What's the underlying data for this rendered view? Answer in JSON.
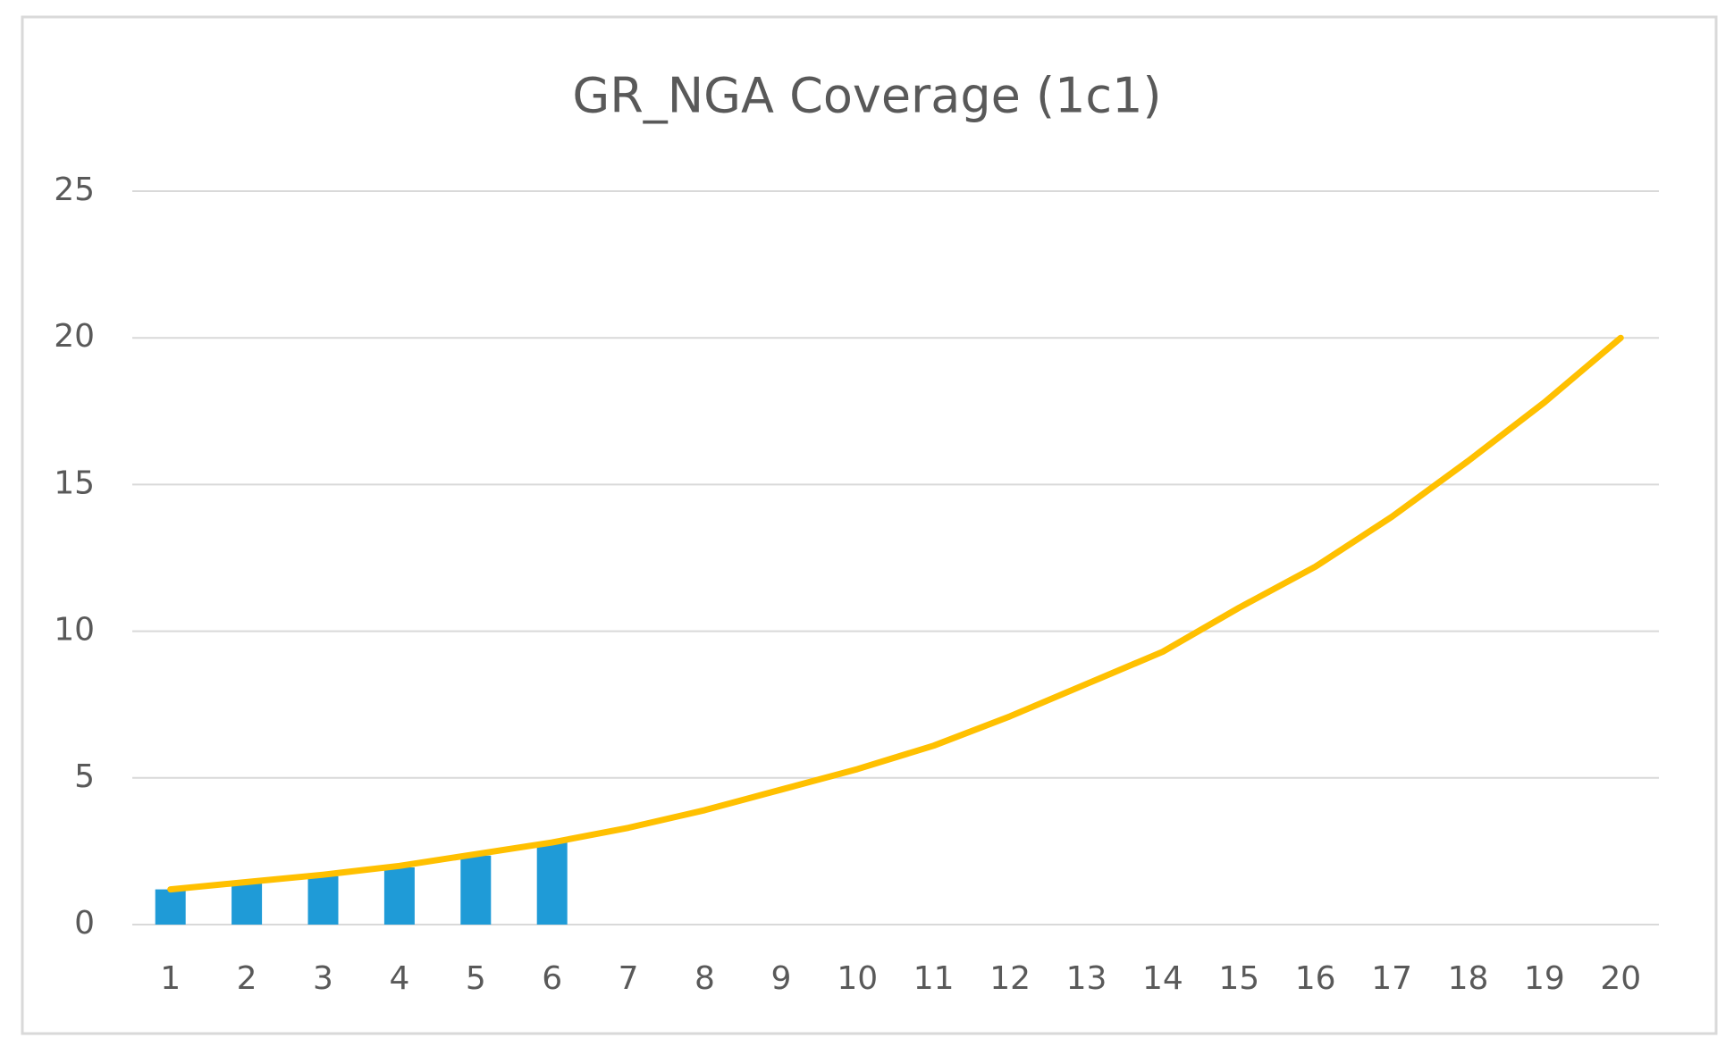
{
  "chart_data": {
    "type": "combo",
    "title": "GR_NGA Coverage (1c1)",
    "categories": [
      "1",
      "2",
      "3",
      "4",
      "5",
      "6",
      "7",
      "8",
      "9",
      "10",
      "11",
      "12",
      "13",
      "14",
      "15",
      "16",
      "17",
      "18",
      "19",
      "20"
    ],
    "series": [
      {
        "type": "bar",
        "color": "#1f9bd7",
        "values": [
          1.2,
          1.4,
          1.65,
          1.95,
          2.35,
          2.8,
          null,
          null,
          null,
          null,
          null,
          null,
          null,
          null,
          null,
          null,
          null,
          null,
          null,
          null
        ]
      },
      {
        "type": "line",
        "color": "#ffc000",
        "values": [
          1.2,
          1.45,
          1.7,
          2.0,
          2.4,
          2.8,
          3.3,
          3.9,
          4.6,
          5.3,
          6.1,
          7.1,
          8.2,
          9.3,
          10.8,
          12.2,
          13.9,
          15.8,
          17.8,
          20.0
        ]
      }
    ],
    "ylim": [
      0,
      25
    ],
    "yticks": [
      0,
      5,
      10,
      15,
      20,
      25
    ],
    "grid": true
  }
}
